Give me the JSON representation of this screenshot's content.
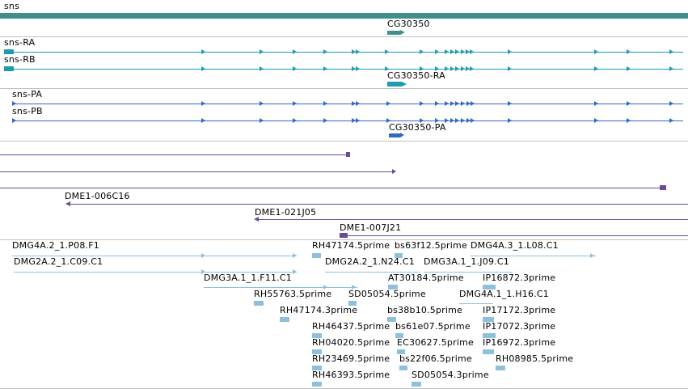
{
  "colors": {
    "gene": "#3f8f8f",
    "transcript": "#1f9ab0",
    "protein": "#3068c8",
    "clone": "#6a4a9a",
    "est": "#8ec0dc",
    "separator": "#c0c0c0"
  },
  "tracks": {
    "gene": {
      "label": "sns",
      "cg_label": "CG30350"
    },
    "transcripts": {
      "ra_label": "sns-RA",
      "rb_label": "sns-RB",
      "cg_ra_label": "CG30350-RA"
    },
    "proteins": {
      "pa_label": "sns-PA",
      "pb_label": "sns-PB",
      "cg_pa_label": "CG30350-PA"
    },
    "clones": {
      "c16_label": "DME1-006C16",
      "j05_label": "DME1-021J05",
      "j21_label": "DME1-007J21"
    },
    "ests": [
      "DMG4A.2_1.P08.F1",
      "DMG2A.2_1.C09.C1",
      "RH47174.5prime",
      "bs63f12.5prime",
      "DMG4A.3_1.L08.C1",
      "DMG2A.2_1.N24.C1",
      "DMG3A.1_1.J09.C1",
      "DMG3A.1_1.F11.C1",
      "AT30184.5prime",
      "IP16872.3prime",
      "RH55763.5prime",
      "SD05054.5prime",
      "DMG4A.1_1.H16.C1",
      "RH47174.3prime",
      "bs38b10.5prime",
      "IP17172.3prime",
      "RH46437.5prime",
      "bs61e07.5prime",
      "IP17072.3prime",
      "RH04020.5prime",
      "EC30627.5prime",
      "IP16972.3prime",
      "RH23469.5prime",
      "bs22f06.5prime",
      "RH08985.5prime",
      "RH46393.5prime",
      "SD05054.3prime"
    ]
  }
}
